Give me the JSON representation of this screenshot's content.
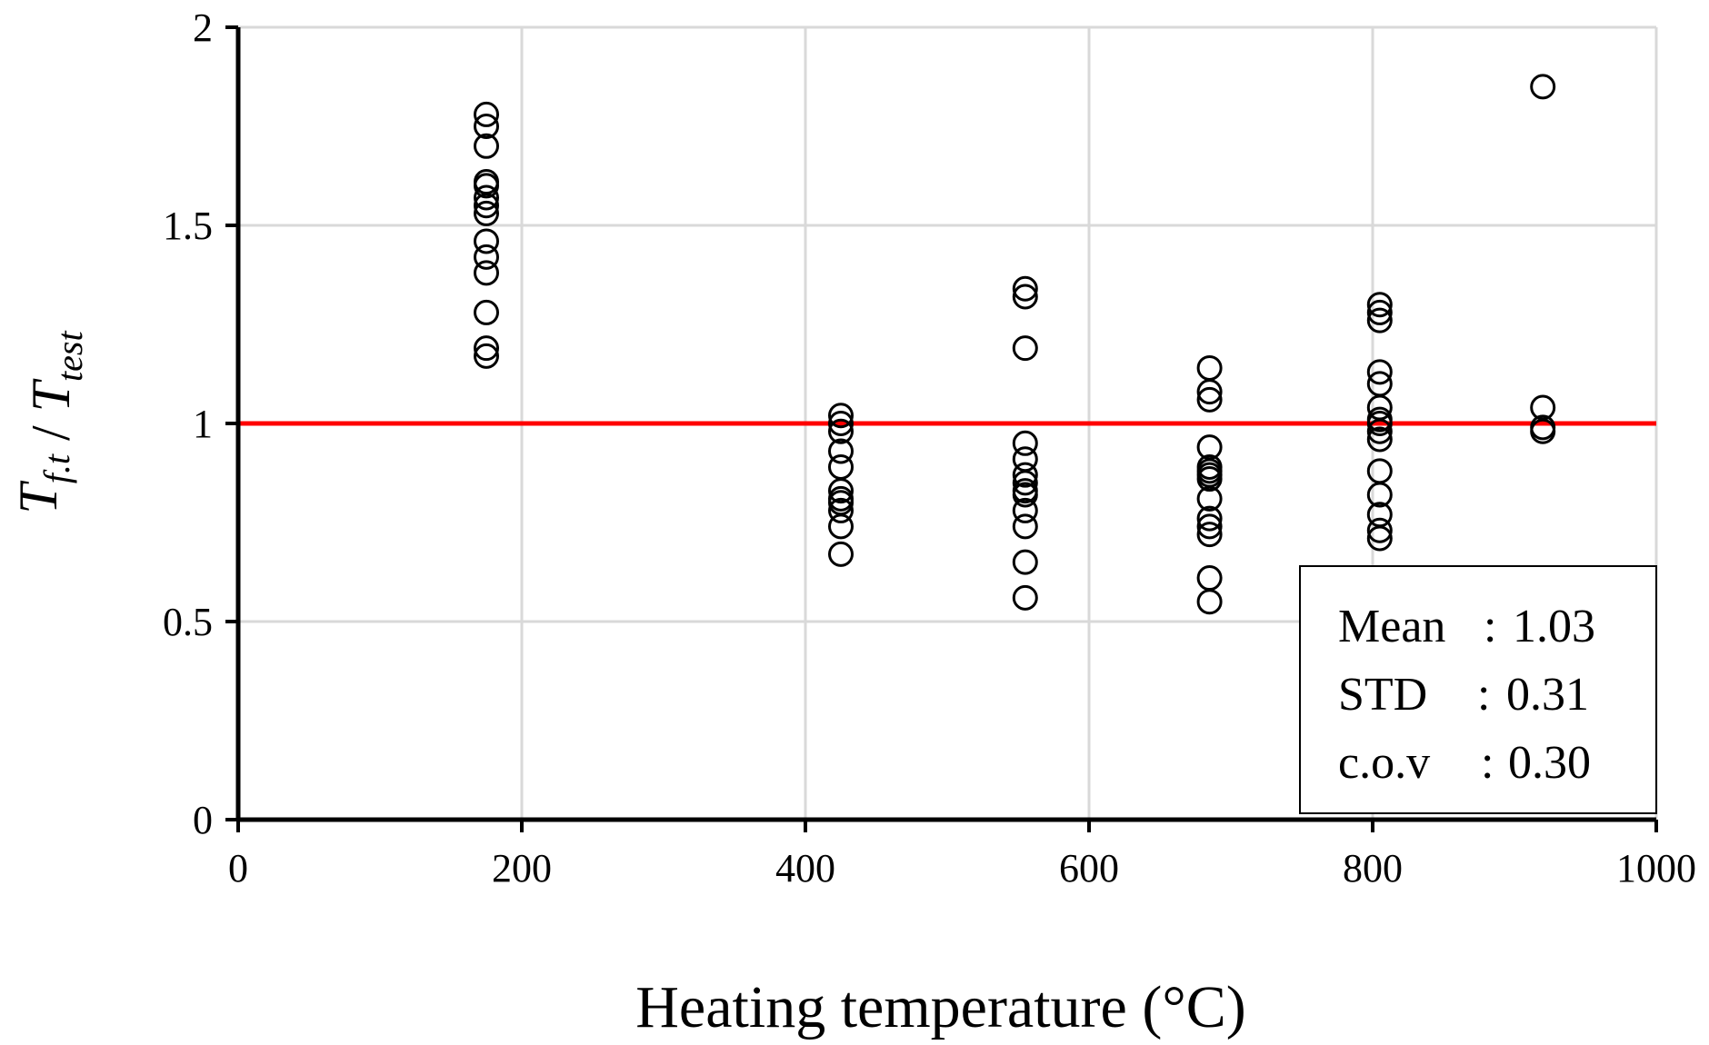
{
  "chart_data": {
    "type": "scatter",
    "title": "",
    "xlabel": "Heating temperature (°C)",
    "ylabel": {
      "parts": [
        {
          "text": "T",
          "sub": "f.t"
        },
        {
          "text": " / "
        },
        {
          "text": "T",
          "sub": "test"
        }
      ]
    },
    "xlim": [
      0,
      1000
    ],
    "ylim": [
      0,
      2
    ],
    "xticks": [
      0,
      200,
      400,
      600,
      800,
      1000
    ],
    "xtick_labels": [
      "0",
      "200",
      "400",
      "600",
      "800",
      "1000"
    ],
    "yticks": [
      0,
      0.5,
      1,
      1.5,
      2
    ],
    "ytick_labels": [
      "0",
      "0.5",
      "1",
      "1.5",
      "2"
    ],
    "grid": true,
    "reference_line": {
      "y": 1.0,
      "color": "#ff0000"
    },
    "marker": {
      "shape": "open-circle",
      "color": "#000000"
    },
    "series": [
      {
        "name": "175 °C",
        "x": 175,
        "values": [
          1.78,
          1.75,
          1.7,
          1.61,
          1.6,
          1.57,
          1.55,
          1.53,
          1.46,
          1.42,
          1.38,
          1.28,
          1.19,
          1.17
        ]
      },
      {
        "name": "425 °C",
        "x": 425,
        "values": [
          1.02,
          1.0,
          0.98,
          0.93,
          0.89,
          0.83,
          0.81,
          0.8,
          0.78,
          0.74,
          0.67
        ]
      },
      {
        "name": "555 °C",
        "x": 555,
        "values": [
          1.34,
          1.32,
          1.19,
          0.95,
          0.91,
          0.87,
          0.85,
          0.83,
          0.82,
          0.78,
          0.74,
          0.65,
          0.56
        ]
      },
      {
        "name": "685 °C",
        "x": 685,
        "values": [
          1.14,
          1.08,
          1.06,
          0.94,
          0.89,
          0.88,
          0.87,
          0.86,
          0.81,
          0.76,
          0.74,
          0.72,
          0.61,
          0.55
        ]
      },
      {
        "name": "805 °C",
        "x": 805,
        "values": [
          1.3,
          1.28,
          1.26,
          1.13,
          1.1,
          1.04,
          1.01,
          1.0,
          0.98,
          0.96,
          0.88,
          0.82,
          0.77,
          0.73,
          0.71
        ]
      },
      {
        "name": "920 °C",
        "x": 920,
        "values": [
          1.85,
          1.04,
          0.99,
          0.98
        ]
      }
    ],
    "stats": [
      {
        "label": "Mean",
        "sep": ":",
        "value": "1.03"
      },
      {
        "label": "STD",
        "sep": ":",
        "value": "0.31"
      },
      {
        "label": "c.o.v",
        "sep": ":",
        "value": "0.30"
      }
    ]
  }
}
